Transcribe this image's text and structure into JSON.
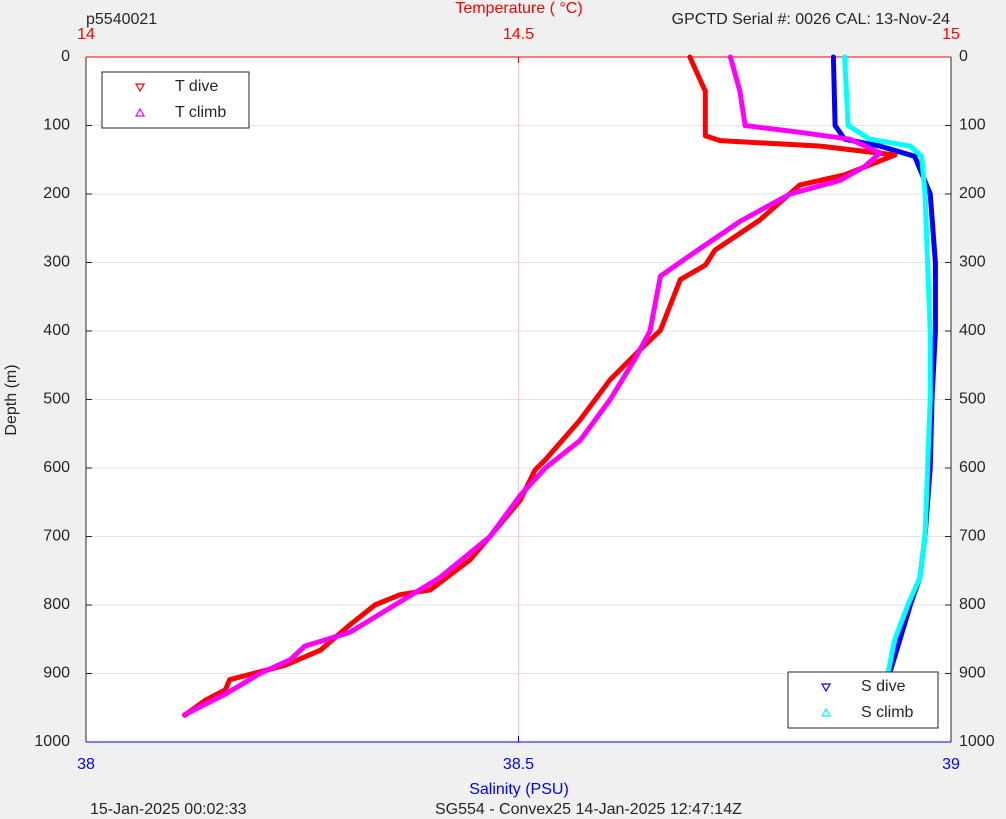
{
  "chart_data": {
    "type": "scatter",
    "top_left": "p5540021",
    "top_right": "GPCTD Serial #: 0026 CAL: 13-Nov-24",
    "footer_left": "15-Jan-2025 00:02:33",
    "footer_center": "SG554 - Convex25 14-Jan-2025 12:47:14Z",
    "ylabel": "Depth (m)",
    "ylim": [
      0,
      1000
    ],
    "y_inverted": true,
    "yticks": [
      0,
      100,
      200,
      300,
      400,
      500,
      600,
      700,
      800,
      900,
      1000
    ],
    "xlabel": "Temperature (    °C)",
    "xlim": [
      14,
      15
    ],
    "xticks": [
      14,
      14.5,
      15
    ],
    "xaxis_color": "#ff0000",
    "x2label": "Salinity (PSU)",
    "x2lim": [
      38,
      39
    ],
    "x2ticks": [
      38,
      38.5,
      39
    ],
    "x2axis_color": "#0000ff",
    "grid": true,
    "legend_loc": "upper left",
    "legend2_loc": "lower right",
    "series": [
      {
        "name": "T dive",
        "color": "#ff0000",
        "axis": "x",
        "depth": [
          0,
          50,
          100,
          115,
          122,
          130,
          143,
          172,
          187,
          238,
          282,
          304,
          325,
          399,
          428,
          471,
          530,
          588,
          603,
          647,
          691,
          734,
          778,
          785,
          800,
          829,
          866,
          888,
          909,
          924,
          939,
          961
        ],
        "values": [
          14.698,
          14.716,
          14.716,
          14.716,
          14.733,
          14.849,
          14.935,
          14.877,
          14.825,
          14.779,
          14.727,
          14.716,
          14.687,
          14.664,
          14.64,
          14.606,
          14.571,
          14.531,
          14.519,
          14.502,
          14.473,
          14.444,
          14.398,
          14.363,
          14.334,
          14.305,
          14.271,
          14.23,
          14.166,
          14.161,
          14.138,
          14.114
        ]
      },
      {
        "name": "T climb",
        "color": "#ff00ff",
        "axis": "x",
        "depth": [
          0,
          50,
          100,
          110,
          120,
          140,
          160,
          180,
          200,
          240,
          270,
          290,
          320,
          360,
          400,
          440,
          500,
          560,
          600,
          640,
          700,
          760,
          800,
          840,
          860,
          880,
          900,
          930,
          960
        ],
        "values": [
          14.745,
          14.756,
          14.762,
          14.825,
          14.883,
          14.918,
          14.9,
          14.872,
          14.814,
          14.756,
          14.721,
          14.698,
          14.664,
          14.658,
          14.652,
          14.635,
          14.606,
          14.571,
          14.531,
          14.502,
          14.467,
          14.409,
          14.357,
          14.305,
          14.253,
          14.236,
          14.201,
          14.161,
          14.114
        ]
      },
      {
        "name": "S dive",
        "color": "#0000ff",
        "axis": "x2",
        "depth": [
          0,
          100,
          120,
          130,
          145,
          200,
          300,
          400,
          500,
          600,
          700,
          760,
          800,
          850,
          900,
          960
        ],
        "values": [
          38.864,
          38.866,
          38.877,
          38.918,
          38.958,
          38.976,
          38.982,
          38.982,
          38.978,
          38.976,
          38.97,
          38.964,
          38.953,
          38.941,
          38.929,
          38.916
        ]
      },
      {
        "name": "S climb",
        "color": "#00ffff",
        "axis": "x2",
        "depth": [
          0,
          100,
          120,
          130,
          145,
          200,
          300,
          400,
          500,
          600,
          700,
          760,
          800,
          850,
          900,
          960
        ],
        "values": [
          38.877,
          38.881,
          38.906,
          38.953,
          38.966,
          38.97,
          38.973,
          38.976,
          38.976,
          38.973,
          38.97,
          38.964,
          38.95,
          38.935,
          38.927,
          38.916
        ]
      }
    ]
  }
}
